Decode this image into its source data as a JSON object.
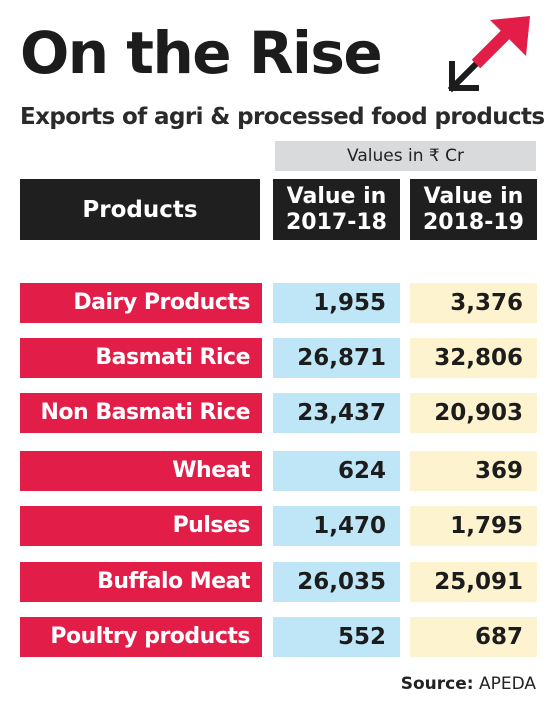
{
  "title": "On the Rise",
  "subtitle": "Exports of agri & processed food products",
  "unit_label": "Values in ₹ Cr",
  "headers": {
    "products": "Products",
    "v1_line1": "Value in",
    "v1_line2": "2017-18",
    "v2_line1": "Value in",
    "v2_line2": "2018-19"
  },
  "colors": {
    "product_band": "#e11d48",
    "col_2017": "#bfe6f7",
    "col_2018": "#fdf3cf",
    "header": "#1f1f1f"
  },
  "icon": "diagonal-arrows-icon",
  "chart_data": {
    "type": "table",
    "columns": [
      "Products",
      "Value in 2017-18",
      "Value in 2018-19"
    ],
    "rows": [
      {
        "product": "Dairy Products",
        "v2017": "1,955",
        "v2018": "3,376"
      },
      {
        "product": "Basmati Rice",
        "v2017": "26,871",
        "v2018": "32,806"
      },
      {
        "product": "Non Basmati Rice",
        "v2017": "23,437",
        "v2018": "20,903"
      },
      {
        "product": "Wheat",
        "v2017": "624",
        "v2018": "369"
      },
      {
        "product": "Pulses",
        "v2017": "1,470",
        "v2018": "1,795"
      },
      {
        "product": "Buffalo Meat",
        "v2017": "26,035",
        "v2018": "25,091"
      },
      {
        "product": "Poultry products",
        "v2017": "552",
        "v2018": "687"
      }
    ]
  },
  "source": {
    "label": "Source:",
    "value": "APEDA"
  }
}
